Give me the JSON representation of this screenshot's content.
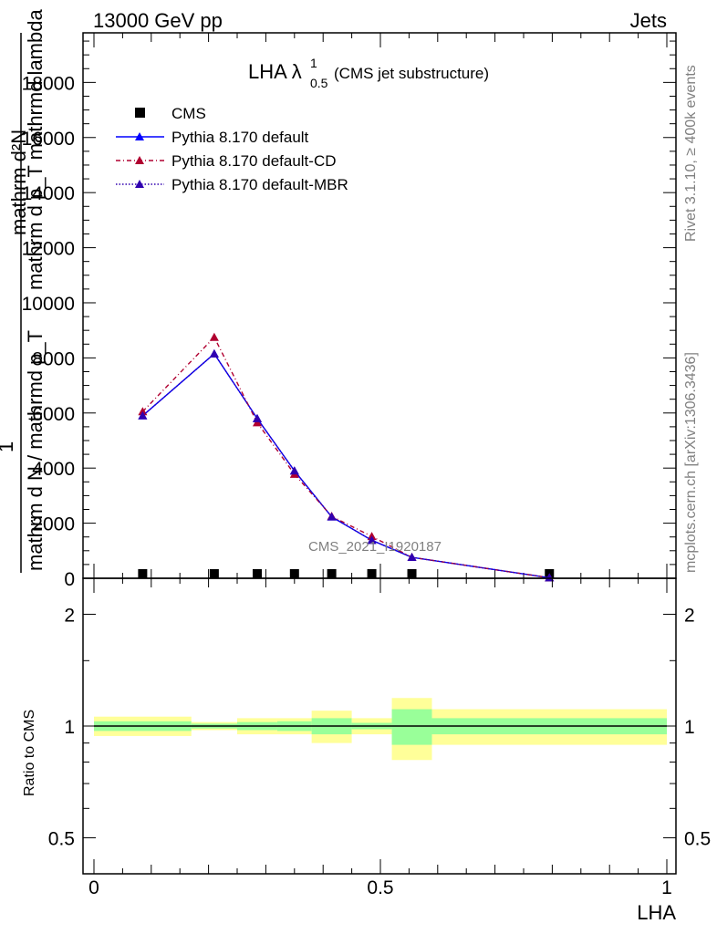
{
  "header": {
    "left": "13000 GeV pp",
    "right": "Jets"
  },
  "side": {
    "rivet": "Rivet 3.1.10, ≥ 400k events",
    "mcplots": "mcplots.cern.ch [arXiv:1306.3436]"
  },
  "chart_data": {
    "type": "line",
    "title_main": "LHA λ",
    "title_sup": "1",
    "title_sub": "0.5",
    "title_suffix": "(CMS jet substructure)",
    "watermark": "CMS_2021_I1920187",
    "ylabel_top": "mathrm d²N",
    "ylabel_bottom": "mathrm d p_T mathrmd lambda",
    "ylabel_frac_num": "1",
    "ylabel_frac_den": "mathrm d N / mathrmd p_T",
    "ylim": [
      0,
      19800
    ],
    "yticks": [
      0,
      2000,
      4000,
      6000,
      8000,
      10000,
      12000,
      14000,
      16000,
      18000
    ],
    "ytick_labels": [
      "0",
      "2000",
      "4000",
      "6000",
      "8000",
      "10000",
      "12000",
      "14000",
      "16000",
      "18000"
    ],
    "xlim": [
      0,
      1
    ],
    "xticks": [
      0,
      0.5,
      1
    ],
    "xtick_labels": [
      "0",
      "0.5",
      "1"
    ],
    "xlabel": "LHA",
    "x": [
      0.085,
      0.21,
      0.285,
      0.35,
      0.415,
      0.485,
      0.555,
      0.795
    ],
    "series": [
      {
        "name": "CMS",
        "color": "#000000",
        "marker": "square",
        "values": [
          0,
          0,
          0,
          0,
          0,
          0,
          0,
          0
        ]
      },
      {
        "name": "Pythia 8.170 default",
        "color": "#0000ff",
        "marker": "triangle",
        "dash": "",
        "values": [
          5900,
          8150,
          5800,
          3900,
          2230,
          1380,
          760,
          20
        ]
      },
      {
        "name": "Pythia 8.170 default-CD",
        "color": "#b00030",
        "marker": "triangle",
        "dash": "5,3,1,3",
        "values": [
          6050,
          8750,
          5650,
          3780,
          2250,
          1520,
          760,
          20
        ]
      },
      {
        "name": "Pythia 8.170 default-MBR",
        "color": "#3000b0",
        "marker": "triangle",
        "dash": "1.5,2",
        "values": [
          5900,
          8150,
          5800,
          3900,
          2230,
          1380,
          760,
          20
        ]
      }
    ],
    "ratio": {
      "ylabel": "Ratio to CMS",
      "yticks": [
        0.5,
        1,
        2
      ],
      "ytick_labels": [
        "0.5",
        "1",
        "2"
      ],
      "ylim": [
        0.4,
        2.5
      ],
      "bins": [
        {
          "lo": 0.0,
          "hi": 0.17,
          "green": 0.03,
          "yellow": 0.06
        },
        {
          "lo": 0.17,
          "hi": 0.25,
          "green": 0.015,
          "yellow": 0.025
        },
        {
          "lo": 0.25,
          "hi": 0.32,
          "green": 0.025,
          "yellow": 0.05
        },
        {
          "lo": 0.32,
          "hi": 0.38,
          "green": 0.03,
          "yellow": 0.05
        },
        {
          "lo": 0.38,
          "hi": 0.45,
          "green": 0.05,
          "yellow": 0.1
        },
        {
          "lo": 0.45,
          "hi": 0.52,
          "green": 0.02,
          "yellow": 0.05
        },
        {
          "lo": 0.52,
          "hi": 0.59,
          "green": 0.11,
          "yellow": 0.19
        },
        {
          "lo": 0.59,
          "hi": 1.0,
          "green": 0.05,
          "yellow": 0.11
        }
      ]
    }
  }
}
